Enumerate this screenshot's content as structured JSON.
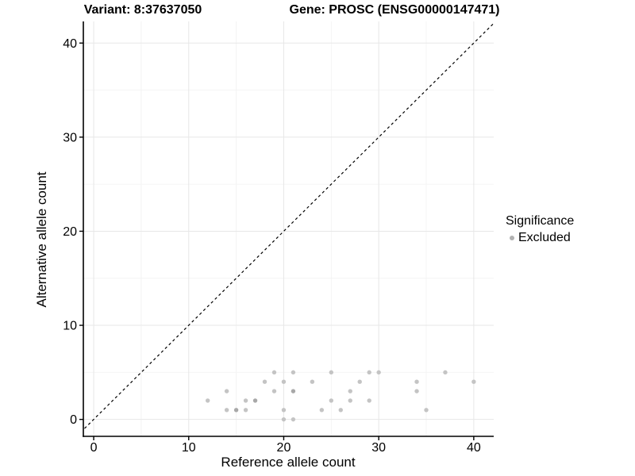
{
  "figure": {
    "title_variant": "Variant: 8:37637050",
    "title_gene": "Gene: PROSC (ENSG00000147471)"
  },
  "legend": {
    "title": "Significance",
    "items": [
      {
        "label": "Excluded",
        "color": "#b2b2b2"
      }
    ]
  },
  "colors": {
    "background": "#ffffff",
    "point": "#c4c4c4",
    "point_overlap": "#a8a8a8",
    "grid_major": "#e7e7e7",
    "grid_minor": "#f3f3f3",
    "axis_line": "#000000",
    "tick_label": "#000000",
    "identity_line": "#000000"
  },
  "chart_data": {
    "type": "scatter",
    "title": "Variant: 8:37637050 — Gene: PROSC (ENSG00000147471)",
    "xlabel": "Reference allele count",
    "ylabel": "Alternative allele count",
    "xlim": [
      -1.09,
      42.1
    ],
    "ylim": [
      -1.8,
      42.3
    ],
    "x_ticks": [
      0,
      10,
      20,
      30,
      40
    ],
    "y_ticks": [
      0,
      10,
      20,
      30,
      40
    ],
    "x_minor_ticks": [
      5,
      15,
      25,
      35
    ],
    "y_minor_ticks": [
      5,
      15,
      25,
      35
    ],
    "grid": true,
    "legend_position": "right",
    "identity_line": {
      "style": "dashed",
      "equation": "y = x"
    },
    "series": [
      {
        "name": "Excluded",
        "color": "#c4c4c4",
        "overlap_color": "#a8a8a8",
        "note": "third element 2 = two overlapping points rendered darker",
        "points": [
          [
            12,
            2
          ],
          [
            14,
            1
          ],
          [
            14,
            3
          ],
          [
            15,
            1,
            2
          ],
          [
            16,
            1
          ],
          [
            16,
            2
          ],
          [
            17,
            2,
            2
          ],
          [
            18,
            4
          ],
          [
            19,
            3
          ],
          [
            19,
            5
          ],
          [
            20,
            0
          ],
          [
            20,
            1
          ],
          [
            20,
            4
          ],
          [
            21,
            0
          ],
          [
            21,
            3,
            2
          ],
          [
            21,
            5
          ],
          [
            23,
            4
          ],
          [
            24,
            1
          ],
          [
            25,
            2
          ],
          [
            25,
            5
          ],
          [
            26,
            1
          ],
          [
            27,
            2
          ],
          [
            27,
            3
          ],
          [
            28,
            4
          ],
          [
            29,
            2
          ],
          [
            29,
            5
          ],
          [
            30,
            5
          ],
          [
            34,
            3
          ],
          [
            34,
            4
          ],
          [
            35,
            1
          ],
          [
            37,
            5
          ],
          [
            40,
            4
          ]
        ]
      }
    ]
  }
}
